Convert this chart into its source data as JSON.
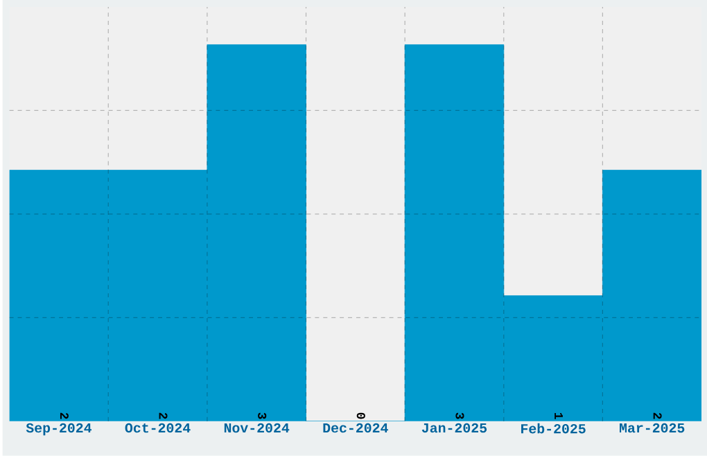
{
  "chart_data": {
    "type": "bar",
    "categories": [
      "Sep-2024",
      "Oct-2024",
      "Nov-2024",
      "Dec-2024",
      "Jan-2025",
      "Feb-2025",
      "Mar-2025"
    ],
    "values": [
      2,
      2,
      3,
      0,
      3,
      1,
      2
    ],
    "color": "#0099cc",
    "ylim": [
      0,
      3.3
    ],
    "yticks": [
      {
        "value": 0.825,
        "label": null
      },
      {
        "value": 1.65,
        "label": null
      },
      {
        "value": 2.475,
        "label": null
      }
    ],
    "tick_labels": "x",
    "grid": true,
    "data_labels": true
  }
}
